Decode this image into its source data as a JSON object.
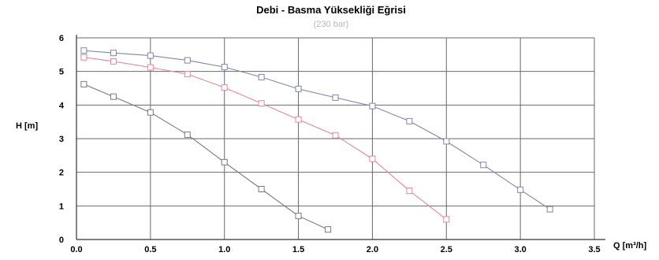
{
  "chart_data": {
    "type": "line",
    "title": "Debi - Basma Yüksekliği Eğrisi",
    "subtitle": "(230 bar)",
    "xlabel": "Q [m³/h]",
    "ylabel": "H [m]",
    "xlim": [
      0,
      3.5
    ],
    "ylim": [
      0,
      6
    ],
    "xticks": [
      "0.0",
      "0.5",
      "1.0",
      "1.5",
      "2.0",
      "2.5",
      "3.0",
      "3.5"
    ],
    "yticks": [
      "0",
      "1",
      "2",
      "3",
      "4",
      "5",
      "6"
    ],
    "grid": true,
    "legend": "none",
    "colors": {
      "series_low": "#7a7a7a",
      "series_mid": "#e5879a",
      "series_high": "#7f86ac",
      "marker_fill": "#ffffff",
      "grid": "#6a6a6a",
      "axis": "#333333"
    },
    "series": [
      {
        "x": [
          0.05,
          0.25,
          0.5,
          0.75,
          1.0,
          1.25,
          1.5,
          1.7
        ],
        "y": [
          4.62,
          4.25,
          3.78,
          3.12,
          2.3,
          1.5,
          0.7,
          0.3
        ]
      },
      {
        "x": [
          0.05,
          0.25,
          0.5,
          0.75,
          1.0,
          1.25,
          1.5,
          1.75,
          2.0,
          2.25,
          2.5
        ],
        "y": [
          5.42,
          5.3,
          5.12,
          4.92,
          4.52,
          4.05,
          3.57,
          3.1,
          2.4,
          1.45,
          0.6
        ]
      },
      {
        "x": [
          0.05,
          0.25,
          0.5,
          0.75,
          1.0,
          1.25,
          1.5,
          1.75,
          2.0,
          2.25,
          2.5,
          2.75,
          3.0,
          3.2
        ],
        "y": [
          5.62,
          5.55,
          5.47,
          5.33,
          5.13,
          4.83,
          4.48,
          4.22,
          3.97,
          3.52,
          2.92,
          2.22,
          1.48,
          0.9
        ]
      }
    ]
  }
}
